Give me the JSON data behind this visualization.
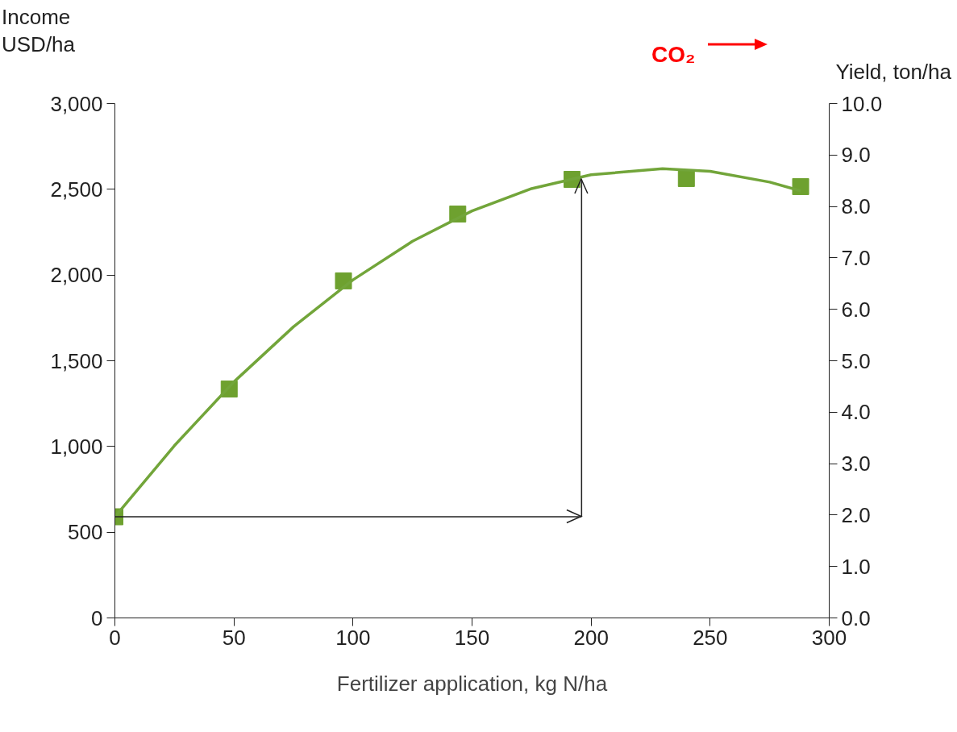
{
  "chart_data": {
    "type": "scatter",
    "xlabel": "Fertilizer application, kg N/ha",
    "ylabel": "Income\nUSD/ha",
    "y2label": "Yield, ton/ha",
    "annotations": [
      "CO₂"
    ],
    "x": [
      0,
      48,
      96,
      144,
      192,
      240,
      288
    ],
    "series": [
      {
        "color": "#6ea12f",
        "marker": "square",
        "values": [
          590,
          1335,
          1966,
          2356,
          2558,
          2563,
          2516
        ]
      },
      {
        "type": "line",
        "color": "#72a53a",
        "line_style": "solid",
        "x": [
          0,
          25,
          50,
          75,
          100,
          125,
          150,
          175,
          200,
          230,
          250,
          275,
          288
        ],
        "values": [
          590,
          1005,
          1377,
          1698,
          1972,
          2197,
          2374,
          2504,
          2585,
          2620,
          2605,
          2542,
          2491
        ]
      }
    ],
    "xlim": [
      0,
      300
    ],
    "xticks": [
      0,
      50,
      100,
      150,
      200,
      250,
      300
    ],
    "ylim": [
      0,
      3000
    ],
    "yticks": [
      {
        "value": 0,
        "label": "0"
      },
      {
        "value": 500,
        "label": "500"
      },
      {
        "value": 1000,
        "label": "1,000"
      },
      {
        "value": 1500,
        "label": "1,500"
      },
      {
        "value": 2000,
        "label": "2,000"
      },
      {
        "value": 2500,
        "label": "2,500"
      },
      {
        "value": 3000,
        "label": "3,000"
      }
    ],
    "y2lim": [
      0,
      10
    ],
    "y2ticks": [
      {
        "value": 0,
        "label": "0.0"
      },
      {
        "value": 1,
        "label": "1.0"
      },
      {
        "value": 2,
        "label": "2.0"
      },
      {
        "value": 3,
        "label": "3.0"
      },
      {
        "value": 4,
        "label": "4.0"
      },
      {
        "value": 5,
        "label": "5.0"
      },
      {
        "value": 6,
        "label": "6.0"
      },
      {
        "value": 7,
        "label": "7.0"
      },
      {
        "value": 8,
        "label": "8.0"
      },
      {
        "value": 9,
        "label": "9.0"
      },
      {
        "value": 10,
        "label": "10.0"
      }
    ],
    "ref_lines": [
      {
        "axis": "y",
        "value": 590,
        "color": "#222222",
        "line_style": "solid"
      },
      {
        "axis": "x",
        "value": 196,
        "color": "#222222",
        "line_style": "solid"
      }
    ],
    "grid": false
  }
}
